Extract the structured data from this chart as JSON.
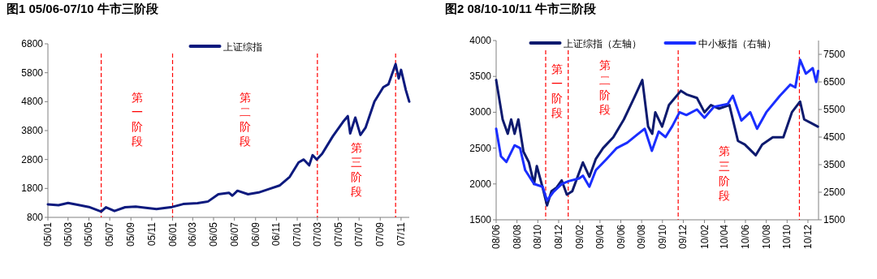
{
  "chart_data": [
    {
      "type": "line",
      "title": "图1  05/06-07/10 牛市三阶段",
      "legend": "top",
      "xlim": [
        "2005-01-01",
        "2007-11-25"
      ],
      "xticks": [
        {
          "value": "2005-01-01",
          "label": "05/01"
        },
        {
          "value": "2005-03-01",
          "label": "05/03"
        },
        {
          "value": "2005-05-01",
          "label": "05/05"
        },
        {
          "value": "2005-07-01",
          "label": "05/07"
        },
        {
          "value": "2005-09-01",
          "label": "05/09"
        },
        {
          "value": "2005-11-01",
          "label": "05/11"
        },
        {
          "value": "2006-01-01",
          "label": "06/01"
        },
        {
          "value": "2006-03-01",
          "label": "06/03"
        },
        {
          "value": "2006-05-01",
          "label": "06/05"
        },
        {
          "value": "2006-07-01",
          "label": "06/07"
        },
        {
          "value": "2006-09-01",
          "label": "06/09"
        },
        {
          "value": "2006-11-01",
          "label": "06/11"
        },
        {
          "value": "2007-01-01",
          "label": "07/01"
        },
        {
          "value": "2007-03-01",
          "label": "07/03"
        },
        {
          "value": "2007-05-01",
          "label": "07/05"
        },
        {
          "value": "2007-07-01",
          "label": "07/07"
        },
        {
          "value": "2007-09-01",
          "label": "07/09"
        },
        {
          "value": "2007-11-01",
          "label": "07/11"
        }
      ],
      "ylim": [
        800,
        6800
      ],
      "yticks": [
        800,
        1800,
        2800,
        3800,
        4800,
        5800,
        6800
      ],
      "ref_lines": [
        {
          "axis": "x",
          "value": "2005-06-06",
          "color": "#ff0000",
          "line_style": "dashed"
        },
        {
          "axis": "x",
          "value": "2006-01-01",
          "color": "#ff0000",
          "line_style": "dashed"
        },
        {
          "axis": "x",
          "value": "2007-03-01",
          "color": "#ff0000",
          "line_style": "dashed"
        },
        {
          "axis": "x",
          "value": "2007-10-16",
          "color": "#ff0000",
          "line_style": "dashed"
        }
      ],
      "annotations": [
        "第一阶段",
        "第二阶段",
        "第三阶段"
      ],
      "series": [
        {
          "name": "上证综指",
          "color": "#0d1a7e",
          "x": [
            "2005-01-01",
            "2005-02-01",
            "2005-03-01",
            "2005-04-01",
            "2005-05-01",
            "2005-06-06",
            "2005-06-20",
            "2005-07-15",
            "2005-08-15",
            "2005-09-15",
            "2005-10-15",
            "2005-11-15",
            "2005-12-31",
            "2006-02-01",
            "2006-03-15",
            "2006-04-15",
            "2006-05-15",
            "2006-06-15",
            "2006-06-25",
            "2006-07-10",
            "2006-08-10",
            "2006-09-10",
            "2006-10-10",
            "2006-11-10",
            "2006-12-10",
            "2007-01-05",
            "2007-01-20",
            "2007-02-05",
            "2007-02-15",
            "2007-02-27",
            "2007-03-15",
            "2007-04-15",
            "2007-05-15",
            "2007-05-29",
            "2007-06-05",
            "2007-06-20",
            "2007-07-05",
            "2007-07-20",
            "2007-08-15",
            "2007-09-10",
            "2007-09-25",
            "2007-10-16",
            "2007-10-25",
            "2007-11-01",
            "2007-11-15",
            "2007-11-25"
          ],
          "values": [
            1250,
            1220,
            1300,
            1230,
            1160,
            1000,
            1150,
            1020,
            1150,
            1170,
            1130,
            1090,
            1160,
            1260,
            1290,
            1350,
            1600,
            1650,
            1550,
            1720,
            1600,
            1660,
            1780,
            1900,
            2200,
            2700,
            2800,
            2600,
            2950,
            2800,
            3000,
            3600,
            4100,
            4300,
            3700,
            4250,
            3650,
            3900,
            4800,
            5300,
            5400,
            6100,
            5600,
            5900,
            5200,
            4800
          ]
        }
      ]
    },
    {
      "type": "line",
      "title": "图2  08/10-10/11 牛市三阶段",
      "legend": "top",
      "xlim": [
        "2008-06-01",
        "2011-01-01"
      ],
      "xticks": [
        {
          "value": "2008-06-01",
          "label": "08/06"
        },
        {
          "value": "2008-08-01",
          "label": "08/08"
        },
        {
          "value": "2008-10-01",
          "label": "08/10"
        },
        {
          "value": "2008-12-01",
          "label": "08/12"
        },
        {
          "value": "2009-02-01",
          "label": "09/02"
        },
        {
          "value": "2009-04-01",
          "label": "09/04"
        },
        {
          "value": "2009-06-01",
          "label": "09/06"
        },
        {
          "value": "2009-08-01",
          "label": "09/08"
        },
        {
          "value": "2009-10-01",
          "label": "09/10"
        },
        {
          "value": "2009-12-01",
          "label": "09/12"
        },
        {
          "value": "2010-02-01",
          "label": "10/02"
        },
        {
          "value": "2010-04-01",
          "label": "10/04"
        },
        {
          "value": "2010-06-01",
          "label": "10/06"
        },
        {
          "value": "2010-08-01",
          "label": "10/08"
        },
        {
          "value": "2010-10-01",
          "label": "10/10"
        },
        {
          "value": "2010-12-01",
          "label": "10/12"
        }
      ],
      "ylim": [
        1500,
        4000
      ],
      "yticks": [
        1500,
        2000,
        2500,
        3000,
        3500,
        4000
      ],
      "y2lim": [
        1500,
        8000
      ],
      "y2ticks": [
        1500,
        2500,
        3500,
        4500,
        5500,
        6500,
        7500
      ],
      "ref_lines": [
        {
          "axis": "x",
          "value": "2008-10-24",
          "color": "#ff0000",
          "line_style": "dashed"
        },
        {
          "axis": "x",
          "value": "2008-12-29",
          "color": "#ff0000",
          "line_style": "dashed"
        },
        {
          "axis": "x",
          "value": "2009-11-16",
          "color": "#ff0000",
          "line_style": "dashed"
        },
        {
          "axis": "x",
          "value": "2010-11-06",
          "color": "#ff0000",
          "line_style": "dashed"
        }
      ],
      "annotations": [
        "第一阶段",
        "第二阶段",
        "第三阶段"
      ],
      "series": [
        {
          "name": "上证综指（左轴）",
          "color": "#0d1a6e",
          "x": [
            "2008-06-01",
            "2008-06-20",
            "2008-07-05",
            "2008-07-15",
            "2008-07-25",
            "2008-08-05",
            "2008-08-20",
            "2008-09-05",
            "2008-09-20",
            "2008-09-28",
            "2008-10-15",
            "2008-10-28",
            "2008-11-10",
            "2008-11-25",
            "2008-12-10",
            "2008-12-25",
            "2009-01-10",
            "2009-02-10",
            "2009-03-01",
            "2009-03-20",
            "2009-04-10",
            "2009-05-10",
            "2009-06-10",
            "2009-07-10",
            "2009-08-03",
            "2009-08-20",
            "2009-09-01",
            "2009-09-10",
            "2009-09-30",
            "2009-10-20",
            "2009-11-24",
            "2009-12-10",
            "2010-01-10",
            "2010-02-01",
            "2010-02-20",
            "2010-03-15",
            "2010-04-15",
            "2010-05-10",
            "2010-05-30",
            "2010-07-01",
            "2010-07-20",
            "2010-08-20",
            "2010-09-20",
            "2010-10-15",
            "2010-11-08",
            "2010-11-20",
            "2010-12-10",
            "2010-12-30"
          ],
          "values": [
            3450,
            2900,
            2700,
            2900,
            2700,
            2900,
            2450,
            2300,
            2000,
            2250,
            1950,
            1700,
            1900,
            1950,
            2050,
            1850,
            1900,
            2300,
            2100,
            2350,
            2500,
            2650,
            2900,
            3200,
            3450,
            2800,
            2700,
            3000,
            2800,
            3100,
            3300,
            3250,
            3200,
            3000,
            3100,
            3050,
            3100,
            2600,
            2550,
            2400,
            2550,
            2650,
            2650,
            3000,
            3150,
            2900,
            2850,
            2800
          ]
        },
        {
          "name": "中小板指（右轴）",
          "color": "#1a2eff",
          "axis": "y2",
          "x": [
            "2008-06-01",
            "2008-06-15",
            "2008-07-01",
            "2008-07-25",
            "2008-08-10",
            "2008-08-25",
            "2008-09-20",
            "2008-10-15",
            "2008-10-28",
            "2008-11-15",
            "2008-12-10",
            "2008-12-30",
            "2009-01-30",
            "2009-02-10",
            "2009-03-01",
            "2009-03-20",
            "2009-04-20",
            "2009-05-20",
            "2009-06-20",
            "2009-07-20",
            "2009-08-10",
            "2009-08-31",
            "2009-09-20",
            "2009-10-10",
            "2009-10-30",
            "2009-11-20",
            "2009-12-10",
            "2010-01-10",
            "2010-02-01",
            "2010-03-01",
            "2010-04-10",
            "2010-04-25",
            "2010-05-20",
            "2010-06-15",
            "2010-07-05",
            "2010-08-01",
            "2010-09-10",
            "2010-10-10",
            "2010-10-25",
            "2010-11-08",
            "2010-11-25",
            "2010-12-15",
            "2010-12-25",
            "2010-12-31"
          ],
          "values": [
            4800,
            3800,
            3600,
            4200,
            4100,
            3300,
            2800,
            2700,
            2200,
            2500,
            2800,
            2900,
            3000,
            3100,
            2700,
            3300,
            3700,
            4100,
            4300,
            4600,
            4800,
            4000,
            4700,
            4500,
            4900,
            5400,
            5300,
            5500,
            5200,
            5600,
            5700,
            6000,
            5100,
            5400,
            4800,
            5400,
            6000,
            6400,
            6300,
            7300,
            6800,
            7000,
            6500,
            6900
          ]
        }
      ]
    }
  ]
}
